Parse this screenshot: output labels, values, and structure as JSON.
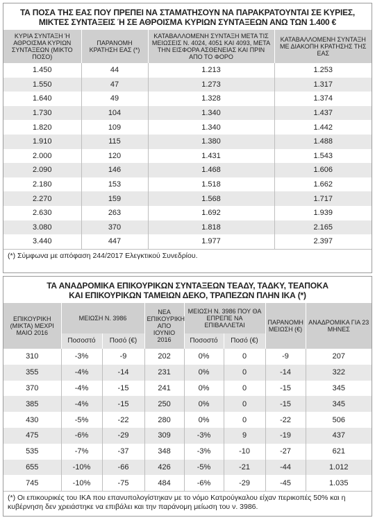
{
  "table1": {
    "title": [
      "ΤΑ ΠΟΣΑ ΤΗΣ ΕΑΣ ΠΟΥ ΠΡΕΠΕΙ ΝΑ ΣΤΑΜΑΤΗΣΟΥΝ ΝΑ ΠΑΡΑΚΡΑΤΟΥΝΤΑΙ ΣΕ ΚΥΡΙΕΣ,",
      "ΜΙΚΤΕΣ ΣΥΝΤΑΞΕΙΣ Ή ΣΕ ΑΘΡΟΙΣΜΑ ΚΥΡΙΩΝ ΣΥΝΤΑΞΕΩΝ ΑΝΩ ΤΩΝ 1.400 €"
    ],
    "headers": [
      "ΚΥΡΙΑ ΣΥΝΤΑΞΗ Ή ΑΘΡΟΙΣΜΑ ΚΥΡΙΩΝ ΣΥΝΤΑΞΕΩΝ (ΜΙΚΤΟ ΠΟΣΟ)",
      "ΠΑΡΑΝΟΜΗ ΚΡΑΤΗΣΗ ΕΑΣ (*)",
      "ΚΑΤΑΒΑΛΛΟΜΕΝΗ ΣΥΝΤΑΞΗ ΜΕΤΑ ΤΙΣ ΜΕΙΩΣΕΙΣ Ν. 4024, 4051 ΚΑΙ 4093, ΜΕΤΑ ΤΗΝ ΕΙΣΦΟΡΑ ΑΣΘΕΝΕΙΑΣ ΚΑΙ ΠΡΙΝ ΑΠΟ ΤΟ ΦΟΡΟ",
      "ΚΑΤΑΒΑΛΛΟΜΕΝΗ ΣΥΝΤΑΞΗ ΜΕ ΔΙΑΚΟΠΗ ΚΡΑΤΗΣΗΣ ΤΗΣ ΕΑΣ"
    ],
    "rows": [
      [
        "1.450",
        "44",
        "1.213",
        "1.253"
      ],
      [
        "1.550",
        "47",
        "1.273",
        "1.317"
      ],
      [
        "1.640",
        "49",
        "1.328",
        "1.374"
      ],
      [
        "1.730",
        "104",
        "1.340",
        "1.437"
      ],
      [
        "1.820",
        "109",
        "1.340",
        "1.442"
      ],
      [
        "1.910",
        "115",
        "1.380",
        "1.488"
      ],
      [
        "2.000",
        "120",
        "1.431",
        "1.543"
      ],
      [
        "2.090",
        "146",
        "1.468",
        "1.606"
      ],
      [
        "2.180",
        "153",
        "1.518",
        "1.662"
      ],
      [
        "2.270",
        "159",
        "1.568",
        "1.717"
      ],
      [
        "2.630",
        "263",
        "1.692",
        "1.939"
      ],
      [
        "3.080",
        "370",
        "1.818",
        "2.165"
      ],
      [
        "3.440",
        "447",
        "1.977",
        "2.397"
      ]
    ],
    "note": "(*) Σύμφωνα με απόφαση 244/2017 Ελεγκτικού Συνεδρίου."
  },
  "table2": {
    "title": [
      "ΤΑ ΑΝΑΔΡΟΜΙΚΑ ΕΠΙΚΟΥΡΙΚΩΝ ΣΥΝΤΑΞΕΩΝ ΤΕΑΔΥ, ΤΑΔΚΥ, ΤΕΑΠΟΚΑ",
      "ΚΑΙ ΕΠΙΚΟΥΡΙΚΩΝ ΤΑΜΕΙΩΝ ΔΕΚΟ, ΤΡΑΠΕΖΩΝ ΠΛΗΝ ΙΚΑ (*)"
    ],
    "headers": {
      "col1": "ΕΠΙΚΟΥΡΙΚΗ (ΜΙΚΤΑ) ΜΕΧΡΙ ΜΑΙΟ 2016",
      "group1": "ΜΕΙΩΣΗ Ν. 3986",
      "group1_sub": [
        "Ποσοστό",
        "Ποσό (€)"
      ],
      "col4": "ΝΕΑ ΕΠΙΚΟΥΡΙΚΗ ΑΠΟ ΙΟΥΝΙΟ 2016",
      "group2": "ΜΕΙΩΣΗ Ν. 3986 ΠΟΥ ΘΑ ΕΠΡΕΠΕ ΝΑ ΕΠΙΒΑΛΛΕΤΑΙ",
      "group2_sub": [
        "Ποσοστό",
        "Ποσό (€)"
      ],
      "col7": "ΠΑΡΑΝΟΜΗ ΜΕΙΩΣΗ (€)",
      "col8": "ΑΝΑΔΡΟΜΙΚΑ ΓΙΑ 23 ΜΗΝΕΣ"
    },
    "rows": [
      [
        "310",
        "-3%",
        "-9",
        "202",
        "0%",
        "0",
        "-9",
        "207"
      ],
      [
        "355",
        "-4%",
        "-14",
        "231",
        "0%",
        "0",
        "-14",
        "322"
      ],
      [
        "370",
        "-4%",
        "-15",
        "241",
        "0%",
        "0",
        "-15",
        "345"
      ],
      [
        "385",
        "-4%",
        "-15",
        "250",
        "0%",
        "0",
        "-15",
        "345"
      ],
      [
        "430",
        "-5%",
        "-22",
        "280",
        "0%",
        "0",
        "-22",
        "506"
      ],
      [
        "475",
        "-6%",
        "-29",
        "309",
        "-3%",
        "9",
        "-19",
        "437"
      ],
      [
        "535",
        "-7%",
        "-37",
        "348",
        "-3%",
        "-10",
        "-27",
        "621"
      ],
      [
        "655",
        "-10%",
        "-66",
        "426",
        "-5%",
        "-21",
        "-44",
        "1.012"
      ],
      [
        "745",
        "-10%",
        "-75",
        "484",
        "-6%",
        "-29",
        "-45",
        "1.035"
      ]
    ],
    "note": "(*) Οι επικουρικές του ΙΚΑ που επανυπολογίστηκαν με το νόμο Κατρούγκαλου είχαν περικοπές 50% και η κυβέρνηση δεν χρειάστηκε να επιβάλει και την παράνομη μείωση του ν. 3986."
  }
}
